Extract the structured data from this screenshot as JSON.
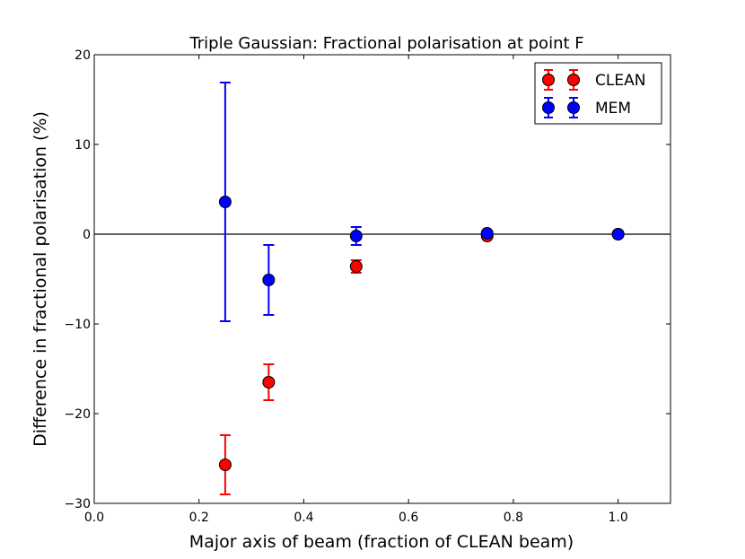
{
  "chart_data": {
    "type": "scatter",
    "title": "Triple Gaussian: Fractional polarisation at point F",
    "xlabel": "Major axis of beam (fraction of CLEAN beam)",
    "ylabel": "Difference in fractional polarisation (%)",
    "xlim": [
      0.0,
      1.1
    ],
    "ylim": [
      -30,
      20
    ],
    "xticks": [
      "0.0",
      "0.2",
      "0.4",
      "0.6",
      "0.8",
      "1.0"
    ],
    "xtick_values": [
      0.0,
      0.2,
      0.4,
      0.6,
      0.8,
      1.0
    ],
    "yticks": [
      "−30",
      "−20",
      "−10",
      "0",
      "10",
      "20"
    ],
    "ytick_values": [
      -30,
      -20,
      -10,
      0,
      10,
      20
    ],
    "grid": false,
    "legend_position": "top-right",
    "reference_line_y": 0,
    "series": [
      {
        "name": "CLEAN",
        "color": "#ff0000",
        "x": [
          0.25,
          0.333,
          0.5,
          0.75,
          1.0
        ],
        "y": [
          -25.7,
          -16.5,
          -3.6,
          -0.2,
          0.0
        ],
        "yerr": [
          3.3,
          2.0,
          0.7,
          0.1,
          0.0
        ]
      },
      {
        "name": "MEM",
        "color": "#0000ff",
        "x": [
          0.25,
          0.333,
          0.5,
          0.75,
          1.0
        ],
        "y": [
          3.6,
          -5.1,
          -0.2,
          0.1,
          0.0
        ],
        "yerr": [
          13.3,
          3.9,
          1.0,
          0.15,
          0.0
        ]
      }
    ]
  }
}
